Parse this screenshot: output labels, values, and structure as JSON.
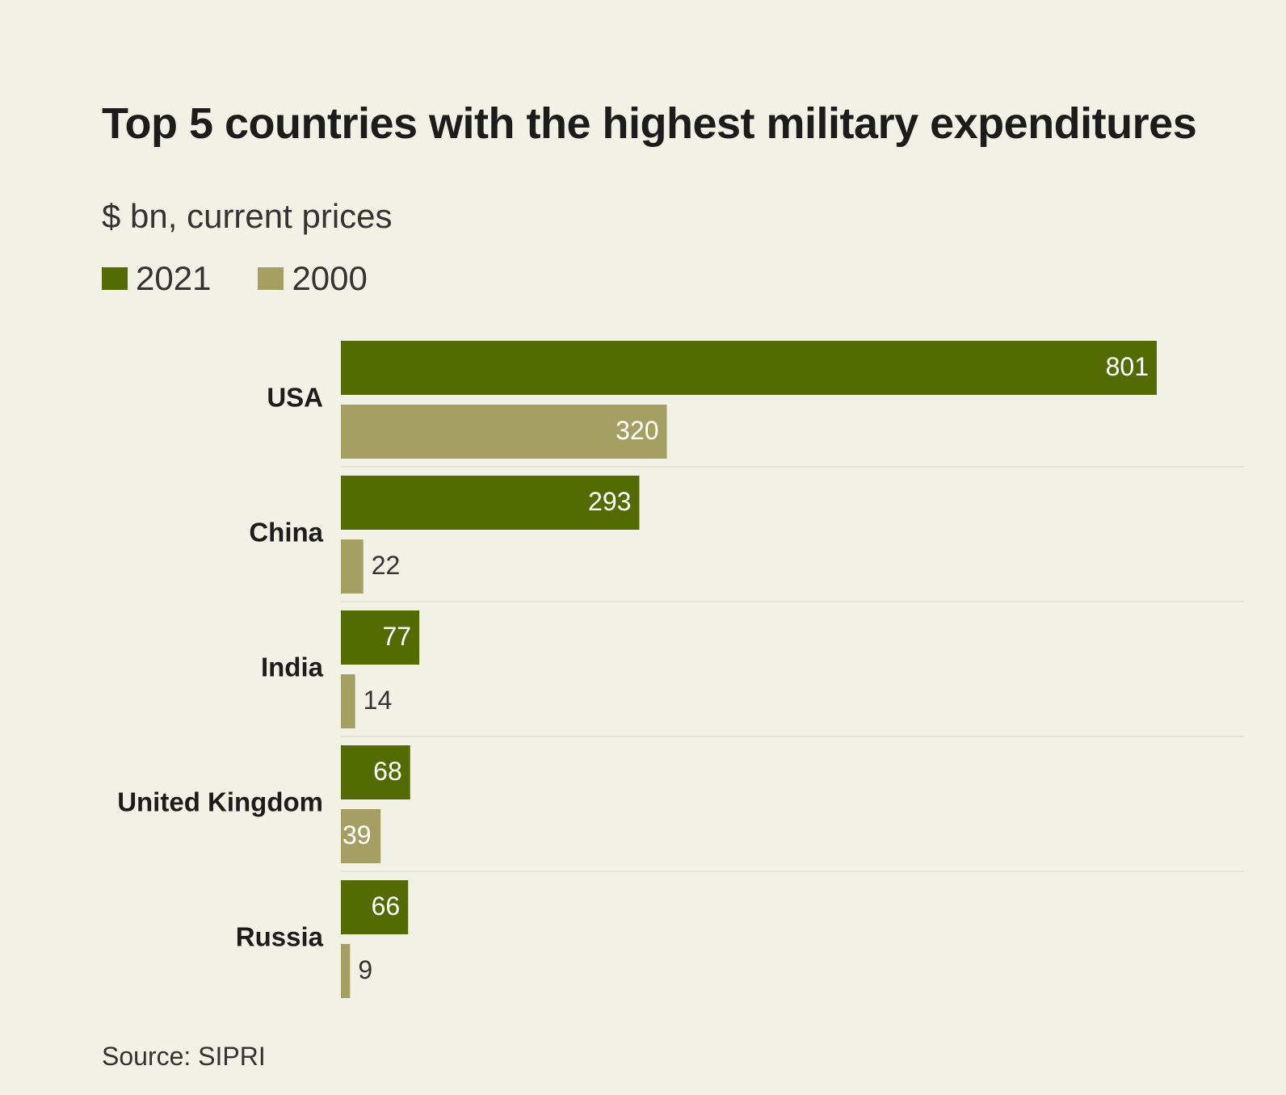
{
  "chart_data": {
    "type": "bar",
    "orientation": "horizontal",
    "title": "Top 5 countries with the highest military expenditures",
    "subtitle": "$ bn, current prices",
    "source": "Source: SIPRI",
    "categories": [
      "USA",
      "China",
      "India",
      "United Kingdom",
      "Russia"
    ],
    "series": [
      {
        "name": "2021",
        "color": "#546a02",
        "values": [
          801,
          293,
          77,
          68,
          66
        ]
      },
      {
        "name": "2000",
        "color": "#a69f64",
        "values": [
          320,
          22,
          14,
          39,
          9
        ]
      }
    ],
    "xlim": [
      0,
      801
    ],
    "grid": false,
    "legend_position": "top-left",
    "value_labels": true
  }
}
